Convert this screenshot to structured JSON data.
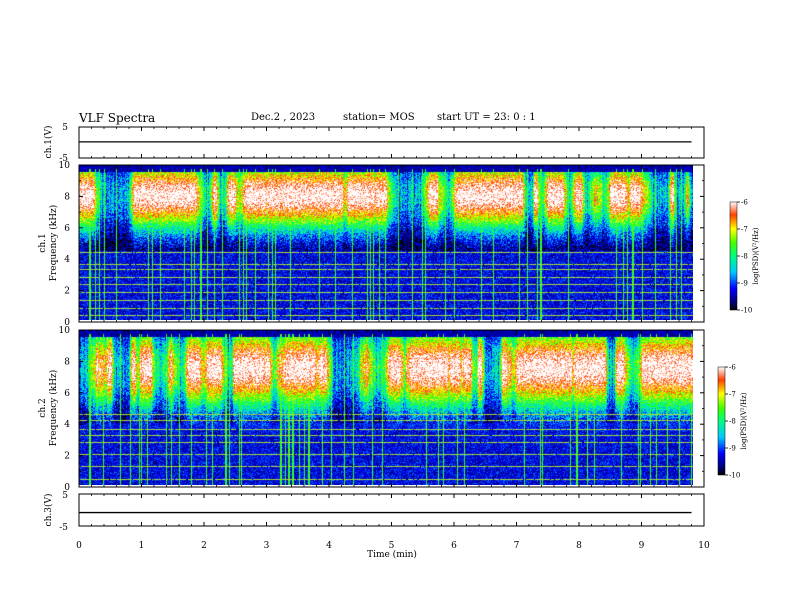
{
  "header": {
    "title": "VLF Spectra",
    "date": "Dec.2 , 2023",
    "station": "station= MOS",
    "start": "start UT = 23: 0 : 1"
  },
  "chart_data": [
    {
      "type": "line",
      "name": "ch1-voltage",
      "ylabel": "ch.1(V)",
      "ylim": [
        -5,
        5
      ],
      "yticks": [
        "5",
        "-5"
      ],
      "x": [
        0,
        9.8
      ],
      "values": [
        0.2,
        0.2
      ]
    },
    {
      "type": "heatmap",
      "name": "ch1-spectrogram",
      "ylabel_line1": "ch.1",
      "ylabel_line2": "Frequency (kHz)",
      "ylim": [
        0,
        10
      ],
      "yticks": [
        "0",
        "2",
        "4",
        "6",
        "8",
        "10"
      ],
      "xlim": [
        0,
        9.8
      ],
      "colorbar": {
        "label": "log(PSD)(V²/Hz)",
        "range": [
          -10,
          -6
        ],
        "ticks": [
          "-6",
          "-7",
          "-8",
          "-9",
          "-10"
        ]
      },
      "background_level": -10,
      "noise_band_khz": [
        0,
        4.5
      ],
      "noise_band_level": -9.3,
      "activity_band_khz": [
        4.5,
        10
      ],
      "activity_peak_level": -6.5,
      "horizontal_lines_khz": [
        0.3,
        0.8,
        1.3,
        1.8,
        2.3,
        2.8,
        3.3,
        3.6,
        4.4
      ]
    },
    {
      "type": "heatmap",
      "name": "ch2-spectrogram",
      "ylabel_line1": "ch.2",
      "ylabel_line2": "Frequency (kHz)",
      "ylim": [
        0,
        10
      ],
      "yticks": [
        "0",
        "2",
        "4",
        "6",
        "8",
        "10"
      ],
      "xlim": [
        0,
        9.8
      ],
      "colorbar": {
        "label": "log(PSD)(V²/Hz)",
        "range": [
          -10,
          -6
        ],
        "ticks": [
          "-6",
          "-7",
          "-8",
          "-9",
          "-10"
        ]
      },
      "background_level": -10,
      "noise_band_khz": [
        0,
        4
      ],
      "noise_band_level": -9.3,
      "activity_band_khz": [
        3.5,
        10
      ],
      "activity_peak_level": -6.5,
      "horizontal_lines_khz": [
        0.4,
        1.2,
        2.0,
        2.8,
        3.2,
        3.6,
        4.2,
        4.6
      ]
    },
    {
      "type": "line",
      "name": "ch3-voltage",
      "ylabel": "ch.3(V)",
      "ylim": [
        -5,
        5
      ],
      "yticks": [
        "5",
        "-5"
      ],
      "x": [
        0,
        9.8
      ],
      "values": [
        -0.8,
        -0.8
      ]
    }
  ],
  "x_axis": {
    "label": "Time (min)",
    "xlim": [
      0,
      10
    ],
    "ticks": [
      "0",
      "1",
      "2",
      "3",
      "4",
      "5",
      "6",
      "7",
      "8",
      "9",
      "10"
    ]
  }
}
